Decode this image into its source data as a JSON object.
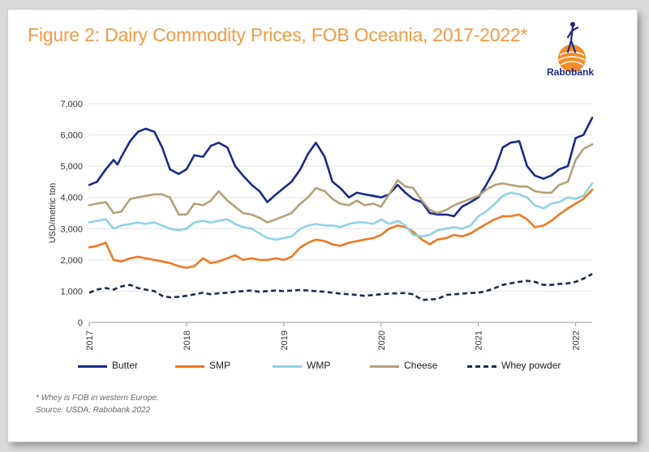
{
  "title": "Figure 2: Dairy Commodity Prices, FOB Oceania, 2017-2022*",
  "brand": {
    "name": "Rabobank",
    "color": "#1c2a8c",
    "accent": "#f28c28"
  },
  "notes": [
    "* Whey is FOB in western Europe.",
    "Source: USDA, Rabobank 2022"
  ],
  "chart_data": {
    "type": "line",
    "title": "Figure 2: Dairy Commodity Prices, FOB Oceania, 2017-2022*",
    "xlabel": "",
    "ylabel": "USD/metric ton",
    "ylim": [
      0,
      7000
    ],
    "yticks": [
      0,
      1000,
      2000,
      3000,
      4000,
      5000,
      6000,
      7000
    ],
    "ytick_labels": [
      "0",
      "1,000",
      "2,000",
      "3,000",
      "4,000",
      "5,000",
      "6,000",
      "7,000"
    ],
    "xlim": [
      2017.0,
      2022.17
    ],
    "xticks": [
      2017,
      2018,
      2019,
      2020,
      2021,
      2022
    ],
    "xtick_labels": [
      "2017",
      "2018",
      "2019",
      "2020",
      "2021",
      "2022"
    ],
    "grid": "horizontal",
    "legend_position": "bottom",
    "series": [
      {
        "name": "Butter",
        "color": "#1a2a8a",
        "style": "solid",
        "x": [
          2017.0,
          2017.08,
          2017.17,
          2017.25,
          2017.29,
          2017.33,
          2017.42,
          2017.5,
          2017.58,
          2017.67,
          2017.75,
          2017.83,
          2017.92,
          2018.0,
          2018.08,
          2018.17,
          2018.25,
          2018.33,
          2018.42,
          2018.5,
          2018.58,
          2018.67,
          2018.75,
          2018.83,
          2018.92,
          2019.0,
          2019.08,
          2019.17,
          2019.25,
          2019.33,
          2019.42,
          2019.5,
          2019.58,
          2019.67,
          2019.75,
          2019.83,
          2019.92,
          2020.0,
          2020.08,
          2020.17,
          2020.25,
          2020.33,
          2020.42,
          2020.5,
          2020.58,
          2020.67,
          2020.75,
          2020.83,
          2020.92,
          2021.0,
          2021.08,
          2021.17,
          2021.25,
          2021.33,
          2021.42,
          2021.5,
          2021.58,
          2021.67,
          2021.75,
          2021.83,
          2021.92,
          2022.0,
          2022.08,
          2022.17
        ],
        "y": [
          4400,
          4500,
          4900,
          5200,
          5050,
          5300,
          5800,
          6100,
          6200,
          6100,
          5600,
          4900,
          4750,
          4900,
          5350,
          5300,
          5650,
          5750,
          5600,
          5000,
          4700,
          4400,
          4200,
          3850,
          4100,
          4300,
          4500,
          4900,
          5400,
          5750,
          5300,
          4500,
          4300,
          4000,
          4150,
          4100,
          4050,
          4000,
          4100,
          4400,
          4150,
          3950,
          3850,
          3500,
          3450,
          3450,
          3400,
          3700,
          3850,
          4000,
          4400,
          4900,
          5600,
          5750,
          5800,
          5000,
          4700,
          4600,
          4700,
          4900,
          5000,
          5900,
          6000,
          6550
        ]
      },
      {
        "name": "SMP",
        "color": "#f07820",
        "style": "solid",
        "x": [
          2017.0,
          2017.08,
          2017.17,
          2017.25,
          2017.33,
          2017.42,
          2017.5,
          2017.58,
          2017.67,
          2017.75,
          2017.83,
          2017.92,
          2018.0,
          2018.08,
          2018.17,
          2018.25,
          2018.33,
          2018.42,
          2018.5,
          2018.58,
          2018.67,
          2018.75,
          2018.83,
          2018.92,
          2019.0,
          2019.08,
          2019.17,
          2019.25,
          2019.33,
          2019.42,
          2019.5,
          2019.58,
          2019.67,
          2019.75,
          2019.83,
          2019.92,
          2020.0,
          2020.08,
          2020.17,
          2020.25,
          2020.33,
          2020.42,
          2020.5,
          2020.58,
          2020.67,
          2020.75,
          2020.83,
          2020.92,
          2021.0,
          2021.08,
          2021.17,
          2021.25,
          2021.33,
          2021.42,
          2021.5,
          2021.58,
          2021.67,
          2021.75,
          2021.83,
          2021.92,
          2022.0,
          2022.08,
          2022.17
        ],
        "y": [
          2400,
          2450,
          2550,
          2000,
          1950,
          2050,
          2100,
          2050,
          2000,
          1950,
          1900,
          1800,
          1750,
          1800,
          2050,
          1900,
          1950,
          2050,
          2150,
          2000,
          2050,
          2000,
          2000,
          2050,
          2000,
          2100,
          2400,
          2550,
          2650,
          2600,
          2500,
          2450,
          2550,
          2600,
          2650,
          2700,
          2800,
          3000,
          3100,
          3050,
          2900,
          2650,
          2500,
          2650,
          2700,
          2800,
          2750,
          2850,
          3000,
          3150,
          3300,
          3400,
          3400,
          3450,
          3300,
          3050,
          3100,
          3250,
          3450,
          3650,
          3800,
          3950,
          4250
        ]
      },
      {
        "name": "WMP",
        "color": "#8fd3e3",
        "style": "solid",
        "x": [
          2017.0,
          2017.08,
          2017.17,
          2017.25,
          2017.33,
          2017.42,
          2017.5,
          2017.58,
          2017.67,
          2017.75,
          2017.83,
          2017.92,
          2018.0,
          2018.08,
          2018.17,
          2018.25,
          2018.33,
          2018.42,
          2018.5,
          2018.58,
          2018.67,
          2018.75,
          2018.83,
          2018.92,
          2019.0,
          2019.08,
          2019.17,
          2019.25,
          2019.33,
          2019.42,
          2019.5,
          2019.58,
          2019.67,
          2019.75,
          2019.83,
          2019.92,
          2020.0,
          2020.08,
          2020.17,
          2020.25,
          2020.33,
          2020.42,
          2020.5,
          2020.58,
          2020.67,
          2020.75,
          2020.83,
          2020.92,
          2021.0,
          2021.08,
          2021.17,
          2021.25,
          2021.33,
          2021.42,
          2021.5,
          2021.58,
          2021.67,
          2021.75,
          2021.83,
          2021.92,
          2022.0,
          2022.08,
          2022.17
        ],
        "y": [
          3200,
          3250,
          3300,
          3000,
          3100,
          3150,
          3200,
          3150,
          3200,
          3100,
          3000,
          2950,
          3000,
          3200,
          3250,
          3200,
          3250,
          3300,
          3150,
          3050,
          3000,
          2850,
          2700,
          2650,
          2700,
          2750,
          3000,
          3100,
          3150,
          3100,
          3100,
          3050,
          3150,
          3200,
          3200,
          3150,
          3300,
          3150,
          3250,
          3100,
          2800,
          2750,
          2800,
          2950,
          3000,
          3050,
          3000,
          3100,
          3400,
          3550,
          3800,
          4050,
          4150,
          4100,
          4000,
          3750,
          3650,
          3800,
          3850,
          4000,
          3950,
          4050,
          4450
        ]
      },
      {
        "name": "Cheese",
        "color": "#b3a17a",
        "style": "solid",
        "x": [
          2017.0,
          2017.08,
          2017.17,
          2017.25,
          2017.33,
          2017.42,
          2017.5,
          2017.58,
          2017.67,
          2017.75,
          2017.83,
          2017.92,
          2018.0,
          2018.08,
          2018.17,
          2018.25,
          2018.33,
          2018.42,
          2018.5,
          2018.58,
          2018.67,
          2018.75,
          2018.83,
          2018.92,
          2019.0,
          2019.08,
          2019.17,
          2019.25,
          2019.33,
          2019.42,
          2019.5,
          2019.58,
          2019.67,
          2019.75,
          2019.83,
          2019.92,
          2020.0,
          2020.08,
          2020.17,
          2020.25,
          2020.33,
          2020.42,
          2020.5,
          2020.58,
          2020.67,
          2020.75,
          2020.83,
          2020.92,
          2021.0,
          2021.08,
          2021.17,
          2021.25,
          2021.33,
          2021.42,
          2021.5,
          2021.58,
          2021.67,
          2021.75,
          2021.83,
          2021.92,
          2022.0,
          2022.08,
          2022.17
        ],
        "y": [
          3750,
          3800,
          3850,
          3500,
          3550,
          3950,
          4000,
          4050,
          4100,
          4100,
          4000,
          3450,
          3450,
          3800,
          3750,
          3900,
          4200,
          3900,
          3700,
          3500,
          3450,
          3350,
          3200,
          3300,
          3400,
          3500,
          3800,
          4000,
          4300,
          4200,
          3950,
          3800,
          3750,
          3900,
          3750,
          3800,
          3700,
          4100,
          4550,
          4350,
          4300,
          3900,
          3600,
          3500,
          3600,
          3750,
          3850,
          3950,
          4050,
          4250,
          4400,
          4450,
          4400,
          4350,
          4350,
          4200,
          4150,
          4150,
          4400,
          4500,
          5200,
          5550,
          5700
        ]
      },
      {
        "name": "Whey powder",
        "color": "#1a2e4a",
        "style": "dashed",
        "x": [
          2017.0,
          2017.08,
          2017.17,
          2017.25,
          2017.33,
          2017.42,
          2017.5,
          2017.58,
          2017.67,
          2017.75,
          2017.83,
          2017.92,
          2018.0,
          2018.08,
          2018.17,
          2018.25,
          2018.33,
          2018.42,
          2018.5,
          2018.58,
          2018.67,
          2018.75,
          2018.83,
          2018.92,
          2019.0,
          2019.08,
          2019.17,
          2019.25,
          2019.33,
          2019.42,
          2019.5,
          2019.58,
          2019.67,
          2019.75,
          2019.83,
          2019.92,
          2020.0,
          2020.08,
          2020.17,
          2020.25,
          2020.33,
          2020.42,
          2020.5,
          2020.58,
          2020.67,
          2020.75,
          2020.83,
          2020.92,
          2021.0,
          2021.08,
          2021.17,
          2021.25,
          2021.33,
          2021.42,
          2021.5,
          2021.58,
          2021.67,
          2021.75,
          2021.83,
          2021.92,
          2022.0,
          2022.08,
          2022.17
        ],
        "y": [
          950,
          1050,
          1100,
          1050,
          1150,
          1200,
          1100,
          1050,
          1000,
          850,
          800,
          820,
          850,
          900,
          950,
          900,
          930,
          950,
          980,
          1000,
          1020,
          980,
          1000,
          1020,
          1000,
          1020,
          1040,
          1020,
          1000,
          980,
          950,
          920,
          900,
          880,
          850,
          880,
          900,
          920,
          930,
          940,
          900,
          720,
          730,
          750,
          880,
          900,
          920,
          940,
          950,
          1000,
          1100,
          1200,
          1250,
          1300,
          1330,
          1300,
          1200,
          1200,
          1230,
          1250,
          1300,
          1400,
          1550
        ]
      }
    ]
  }
}
